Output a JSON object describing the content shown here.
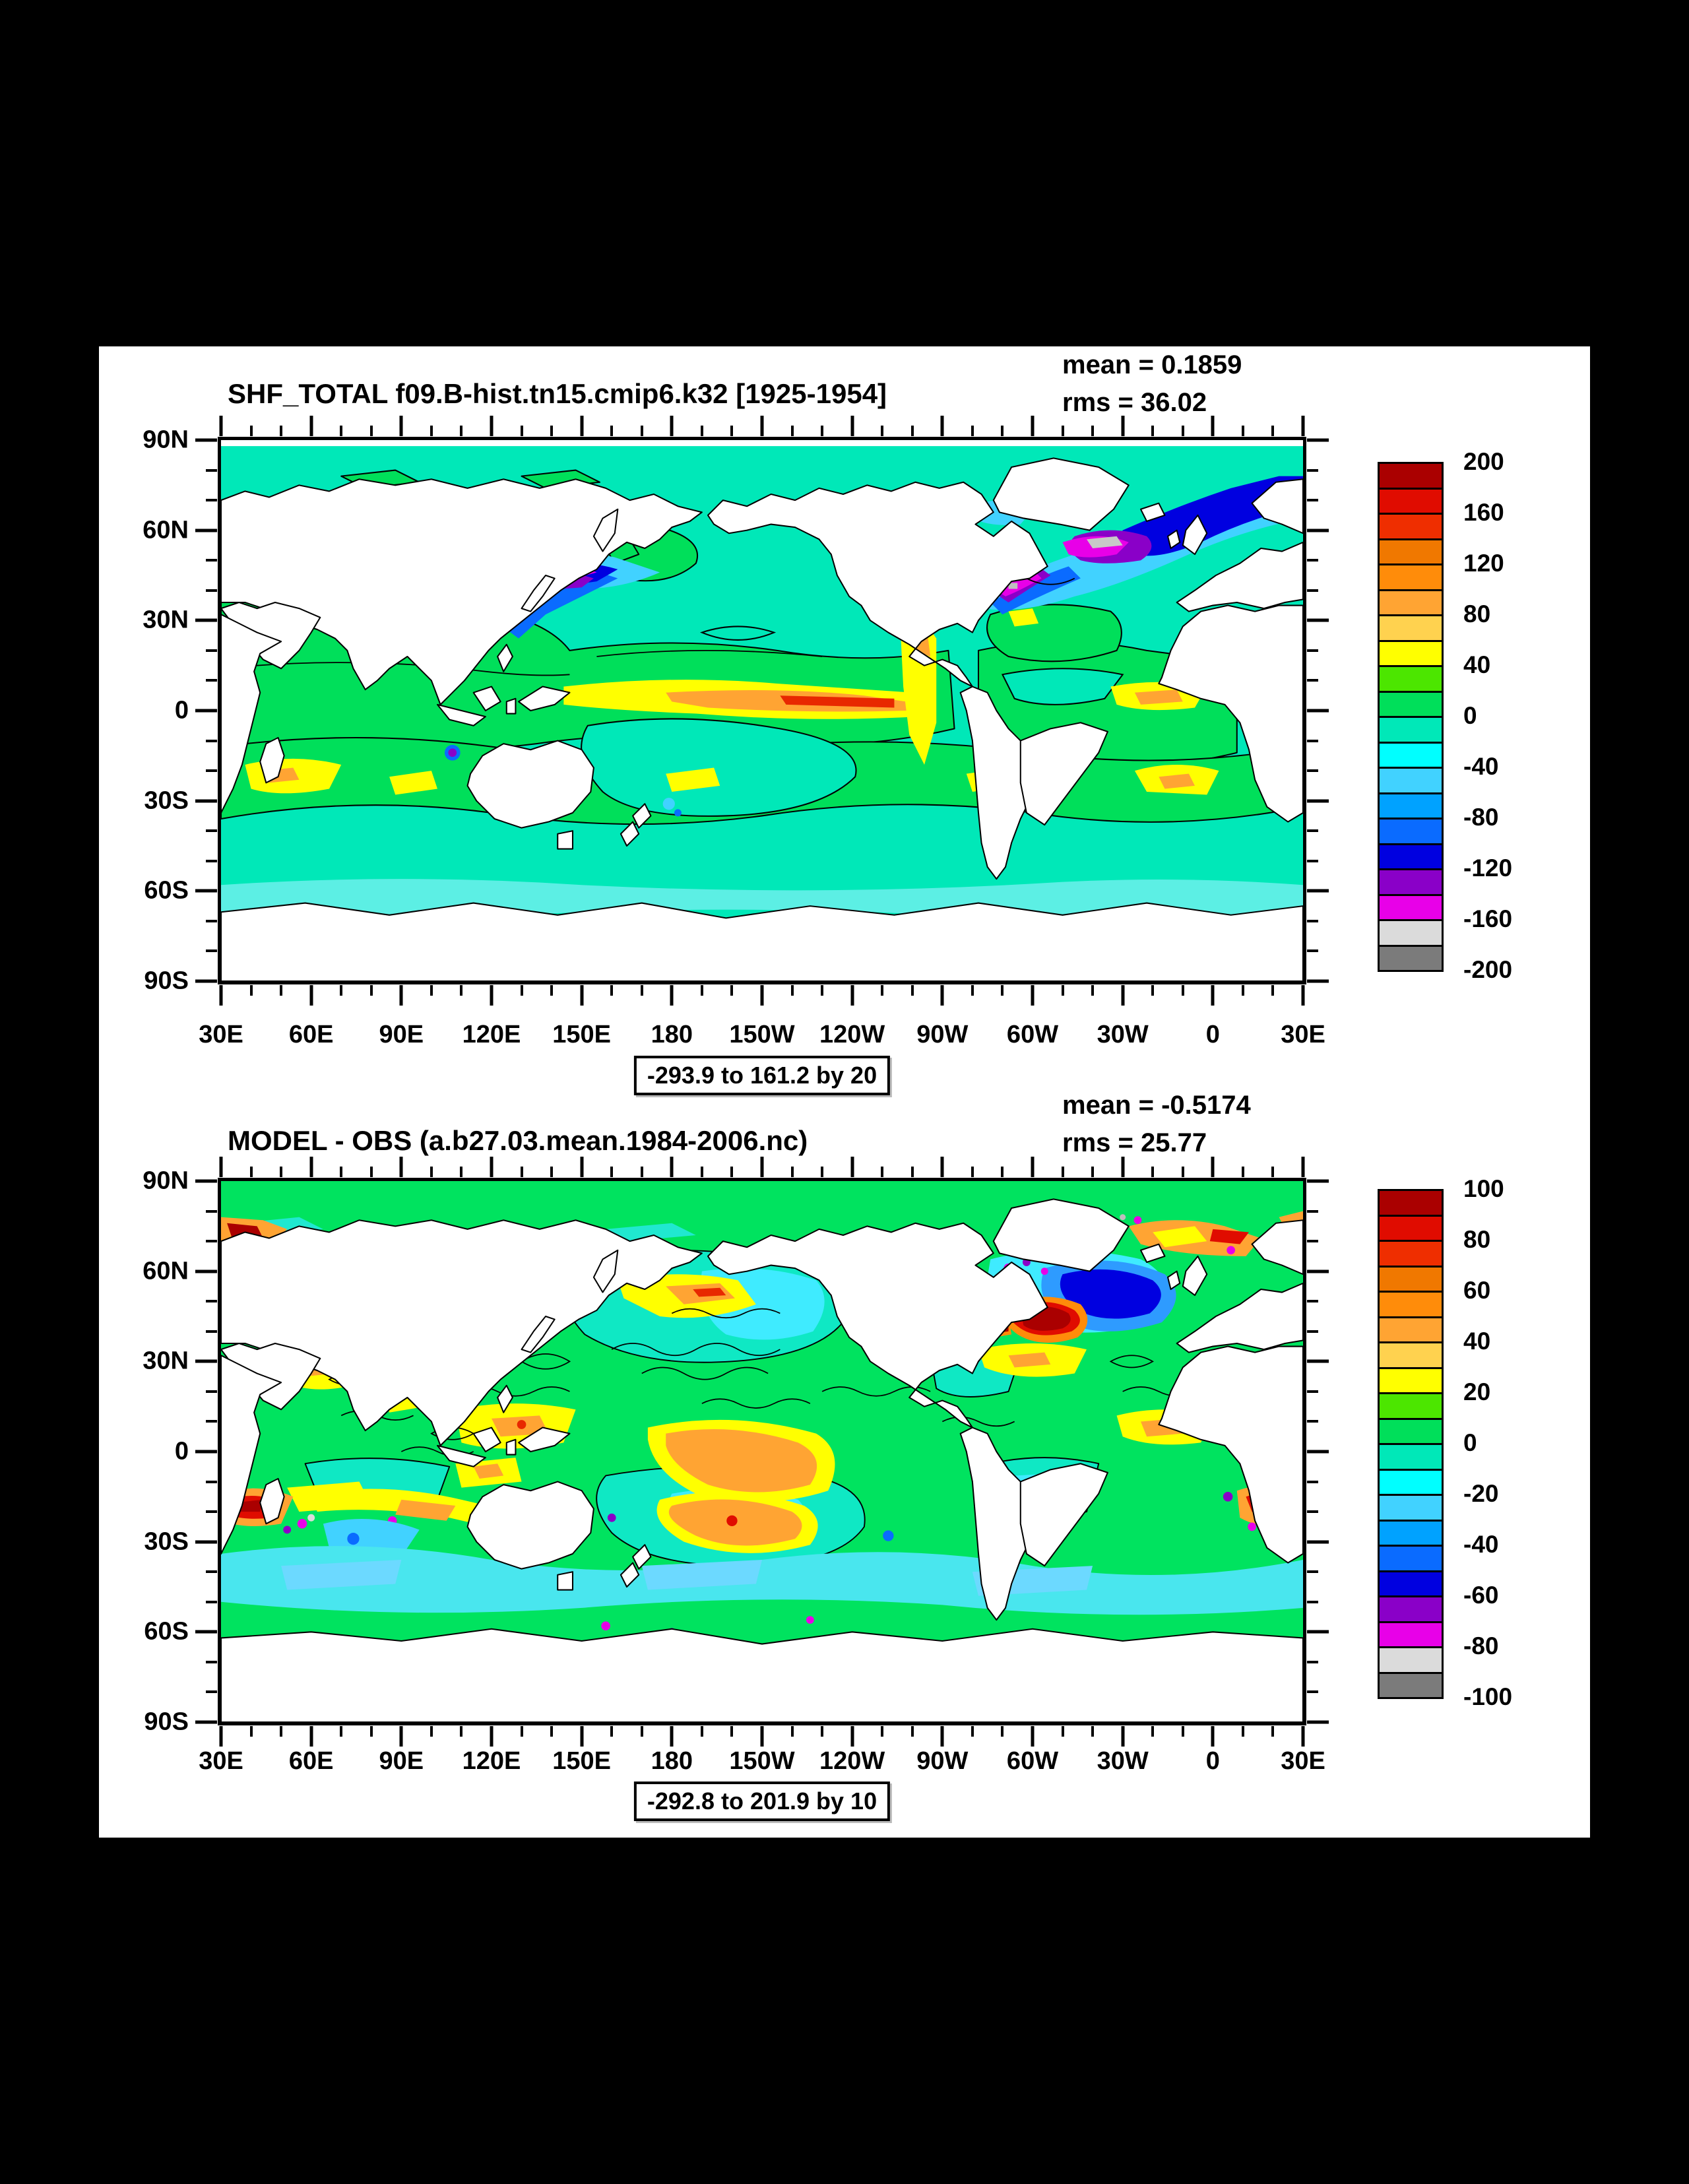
{
  "page": {
    "background": "#000000",
    "panel_background": "#ffffff"
  },
  "top_plot": {
    "title": "SHF_TOTAL f09.B-hist.tn15.cmip6.k32 [1925-1954]",
    "mean_label": "mean = 0.1859",
    "rms_label": "rms = 36.02",
    "range_label": "-293.9 to 161.2 by 20",
    "colorbar_labels": [
      "200",
      "160",
      "120",
      "80",
      "40",
      "0",
      "-40",
      "-80",
      "-120",
      "-160",
      "-200"
    ]
  },
  "bottom_plot": {
    "title": "MODEL - OBS (a.b27.03.mean.1984-2006.nc)",
    "mean_label": "mean = -0.5174",
    "rms_label": "rms = 25.77",
    "range_label": "-292.8 to 201.9 by 10",
    "colorbar_labels": [
      "100",
      "80",
      "60",
      "40",
      "20",
      "0",
      "-20",
      "-40",
      "-60",
      "-80",
      "-100"
    ]
  },
  "axes": {
    "x_labels": [
      "30E",
      "60E",
      "90E",
      "120E",
      "150E",
      "180",
      "150W",
      "120W",
      "90W",
      "60W",
      "30W",
      "0",
      "30E"
    ],
    "y_labels": [
      "90N",
      "60N",
      "30N",
      "0",
      "30S",
      "60S",
      "90S"
    ]
  },
  "palette": [
    "#AA0000",
    "#E00C00",
    "#EF2E00",
    "#F07800",
    "#FF8C0A",
    "#FFA433",
    "#FFD24F",
    "#FFFF00",
    "#4CE600",
    "#00DF5A",
    "#00E8B8",
    "#00FFFF",
    "#41D2FF",
    "#00A2FF",
    "#0A6BFF",
    "#0000E0",
    "#8A00C8",
    "#E800E8",
    "#DBDBDB",
    "#7B7B7B"
  ],
  "chart_data": [
    {
      "type": "heatmap",
      "title": "SHF_TOTAL f09.B-hist.tn15.cmip6.k32 [1925-1954]",
      "mean": 0.1859,
      "rms": 36.02,
      "field_range": {
        "min": -293.9,
        "max": 161.2,
        "contour_interval": 20
      },
      "colorbar_levels": [
        200,
        160,
        120,
        80,
        40,
        0,
        -40,
        -80,
        -120,
        -160,
        -200
      ],
      "x_ticks": [
        "30E",
        "60E",
        "90E",
        "120E",
        "150E",
        "180",
        "150W",
        "120W",
        "90W",
        "60W",
        "30W",
        "0",
        "30E"
      ],
      "y_ticks": [
        "90N",
        "60N",
        "30N",
        "0",
        "30S",
        "60S",
        "90S"
      ],
      "projection": "cylindrical-equidistant world map, land masked white",
      "legend_position": "right"
    },
    {
      "type": "heatmap",
      "title": "MODEL - OBS (a.b27.03.mean.1984-2006.nc)",
      "mean": -0.5174,
      "rms": 25.77,
      "field_range": {
        "min": -292.8,
        "max": 201.9,
        "contour_interval": 10
      },
      "colorbar_levels": [
        100,
        80,
        60,
        40,
        20,
        0,
        -20,
        -40,
        -60,
        -80,
        -100
      ],
      "x_ticks": [
        "30E",
        "60E",
        "90E",
        "120E",
        "150E",
        "180",
        "150W",
        "120W",
        "90W",
        "60W",
        "30W",
        "0",
        "30E"
      ],
      "y_ticks": [
        "90N",
        "60N",
        "30N",
        "0",
        "30S",
        "60S",
        "90S"
      ],
      "projection": "cylindrical-equidistant world map, land masked white",
      "legend_position": "right"
    }
  ]
}
